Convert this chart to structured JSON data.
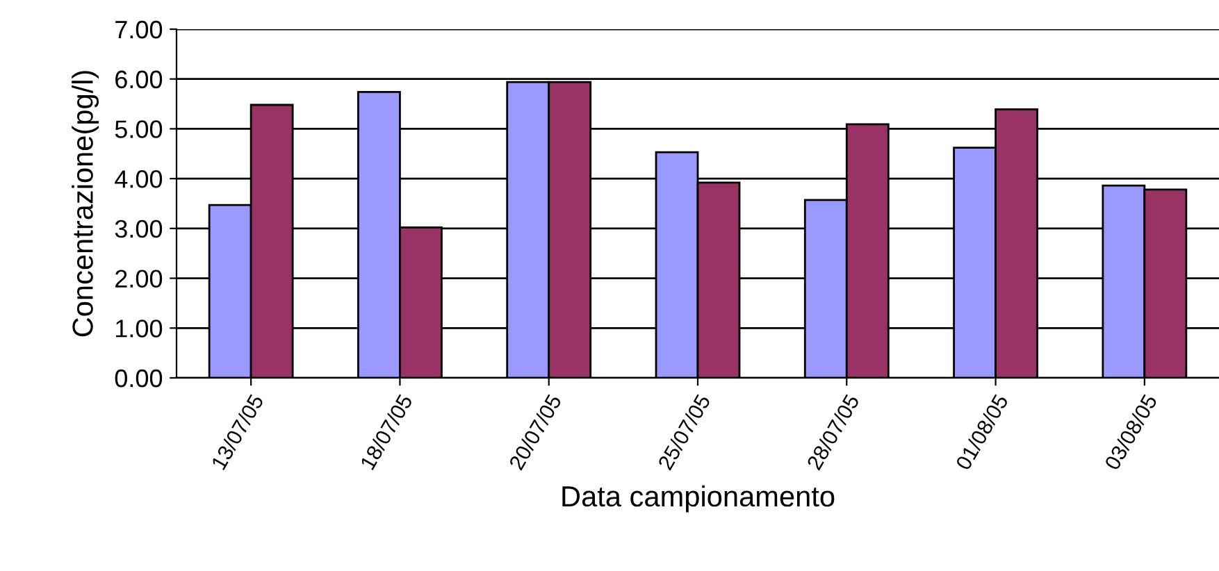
{
  "chart_data": {
    "type": "bar",
    "xlabel": "Data campionamento",
    "ylabel": "Concentrazione(pg/l)",
    "categories": [
      "13/07/05",
      "18/07/05",
      "20/07/05",
      "25/07/05",
      "28/07/05",
      "01/08/05",
      "03/08/05"
    ],
    "series": [
      {
        "color": "#9999ff",
        "values": [
          3.47,
          5.74,
          5.94,
          4.53,
          3.57,
          4.62,
          3.86
        ]
      },
      {
        "color": "#993366",
        "values": [
          5.48,
          3.02,
          5.94,
          3.92,
          5.09,
          5.39,
          3.78
        ]
      }
    ],
    "ylim": [
      0,
      7
    ],
    "yticks": [
      {
        "value": 0,
        "label": "0.00"
      },
      {
        "value": 1,
        "label": "1.00"
      },
      {
        "value": 2,
        "label": "2.00"
      },
      {
        "value": 3,
        "label": "3.00"
      },
      {
        "value": 4,
        "label": "4.00"
      },
      {
        "value": 5,
        "label": "5.00"
      },
      {
        "value": 6,
        "label": "6.00"
      },
      {
        "value": 7,
        "label": "7.00"
      }
    ],
    "grid": "y"
  }
}
